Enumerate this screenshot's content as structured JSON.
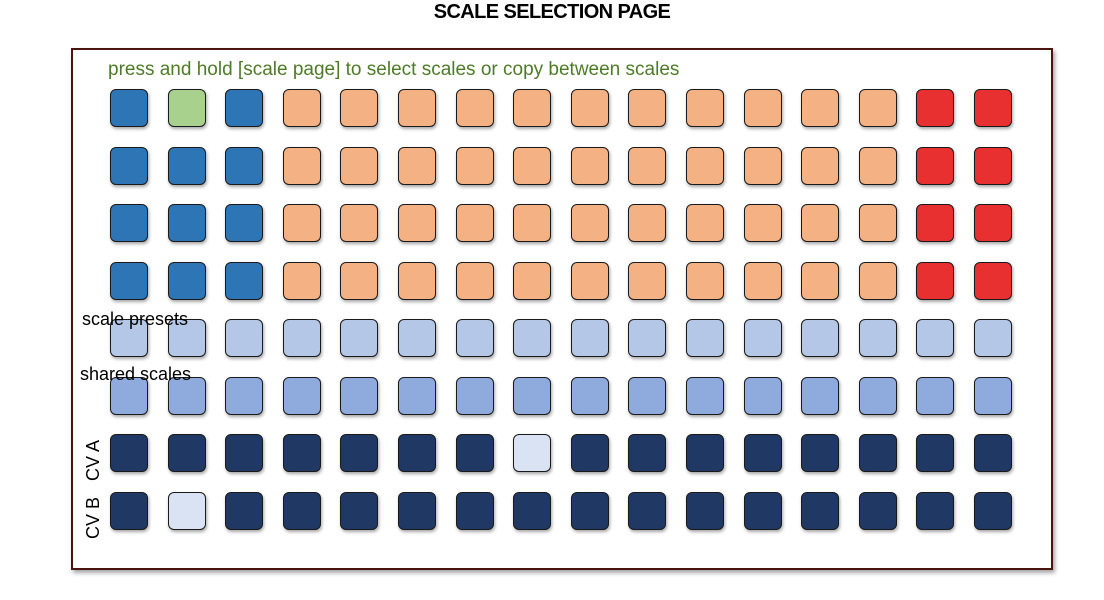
{
  "title": "SCALE SELECTION PAGE",
  "instruction": "press and hold [scale page] to select scales or copy between scales",
  "labels": {
    "scale_presets": "scale presets",
    "shared_scales": "shared scales",
    "cv_a": "CV A",
    "cv_b": "CV B"
  },
  "colors": {
    "blue": "#2e75b6",
    "green": "#a9d18e",
    "orange": "#f4b183",
    "red": "#e83030",
    "light_blue": "#b4c7e7",
    "mid_blue": "#8faadc",
    "navy": "#203864",
    "pale": "#dae3f3"
  },
  "grid": {
    "rows": [
      [
        "blue",
        "green",
        "blue",
        "orange",
        "orange",
        "orange",
        "orange",
        "orange",
        "orange",
        "orange",
        "orange",
        "orange",
        "orange",
        "orange",
        "red",
        "red"
      ],
      [
        "blue",
        "blue",
        "blue",
        "orange",
        "orange",
        "orange",
        "orange",
        "orange",
        "orange",
        "orange",
        "orange",
        "orange",
        "orange",
        "orange",
        "red",
        "red"
      ],
      [
        "blue",
        "blue",
        "blue",
        "orange",
        "orange",
        "orange",
        "orange",
        "orange",
        "orange",
        "orange",
        "orange",
        "orange",
        "orange",
        "orange",
        "red",
        "red"
      ],
      [
        "blue",
        "blue",
        "blue",
        "orange",
        "orange",
        "orange",
        "orange",
        "orange",
        "orange",
        "orange",
        "orange",
        "orange",
        "orange",
        "orange",
        "red",
        "red"
      ],
      [
        "light_blue",
        "light_blue",
        "light_blue",
        "light_blue",
        "light_blue",
        "light_blue",
        "light_blue",
        "light_blue",
        "light_blue",
        "light_blue",
        "light_blue",
        "light_blue",
        "light_blue",
        "light_blue",
        "light_blue",
        "light_blue"
      ],
      [
        "mid_blue",
        "mid_blue",
        "mid_blue",
        "mid_blue",
        "mid_blue",
        "mid_blue",
        "mid_blue",
        "mid_blue",
        "mid_blue",
        "mid_blue",
        "mid_blue",
        "mid_blue",
        "mid_blue",
        "mid_blue",
        "mid_blue",
        "mid_blue"
      ],
      [
        "navy",
        "navy",
        "navy",
        "navy",
        "navy",
        "navy",
        "navy",
        "pale",
        "navy",
        "navy",
        "navy",
        "navy",
        "navy",
        "navy",
        "navy",
        "navy"
      ],
      [
        "navy",
        "pale",
        "navy",
        "navy",
        "navy",
        "navy",
        "navy",
        "navy",
        "navy",
        "navy",
        "navy",
        "navy",
        "navy",
        "navy",
        "navy",
        "navy"
      ]
    ]
  }
}
